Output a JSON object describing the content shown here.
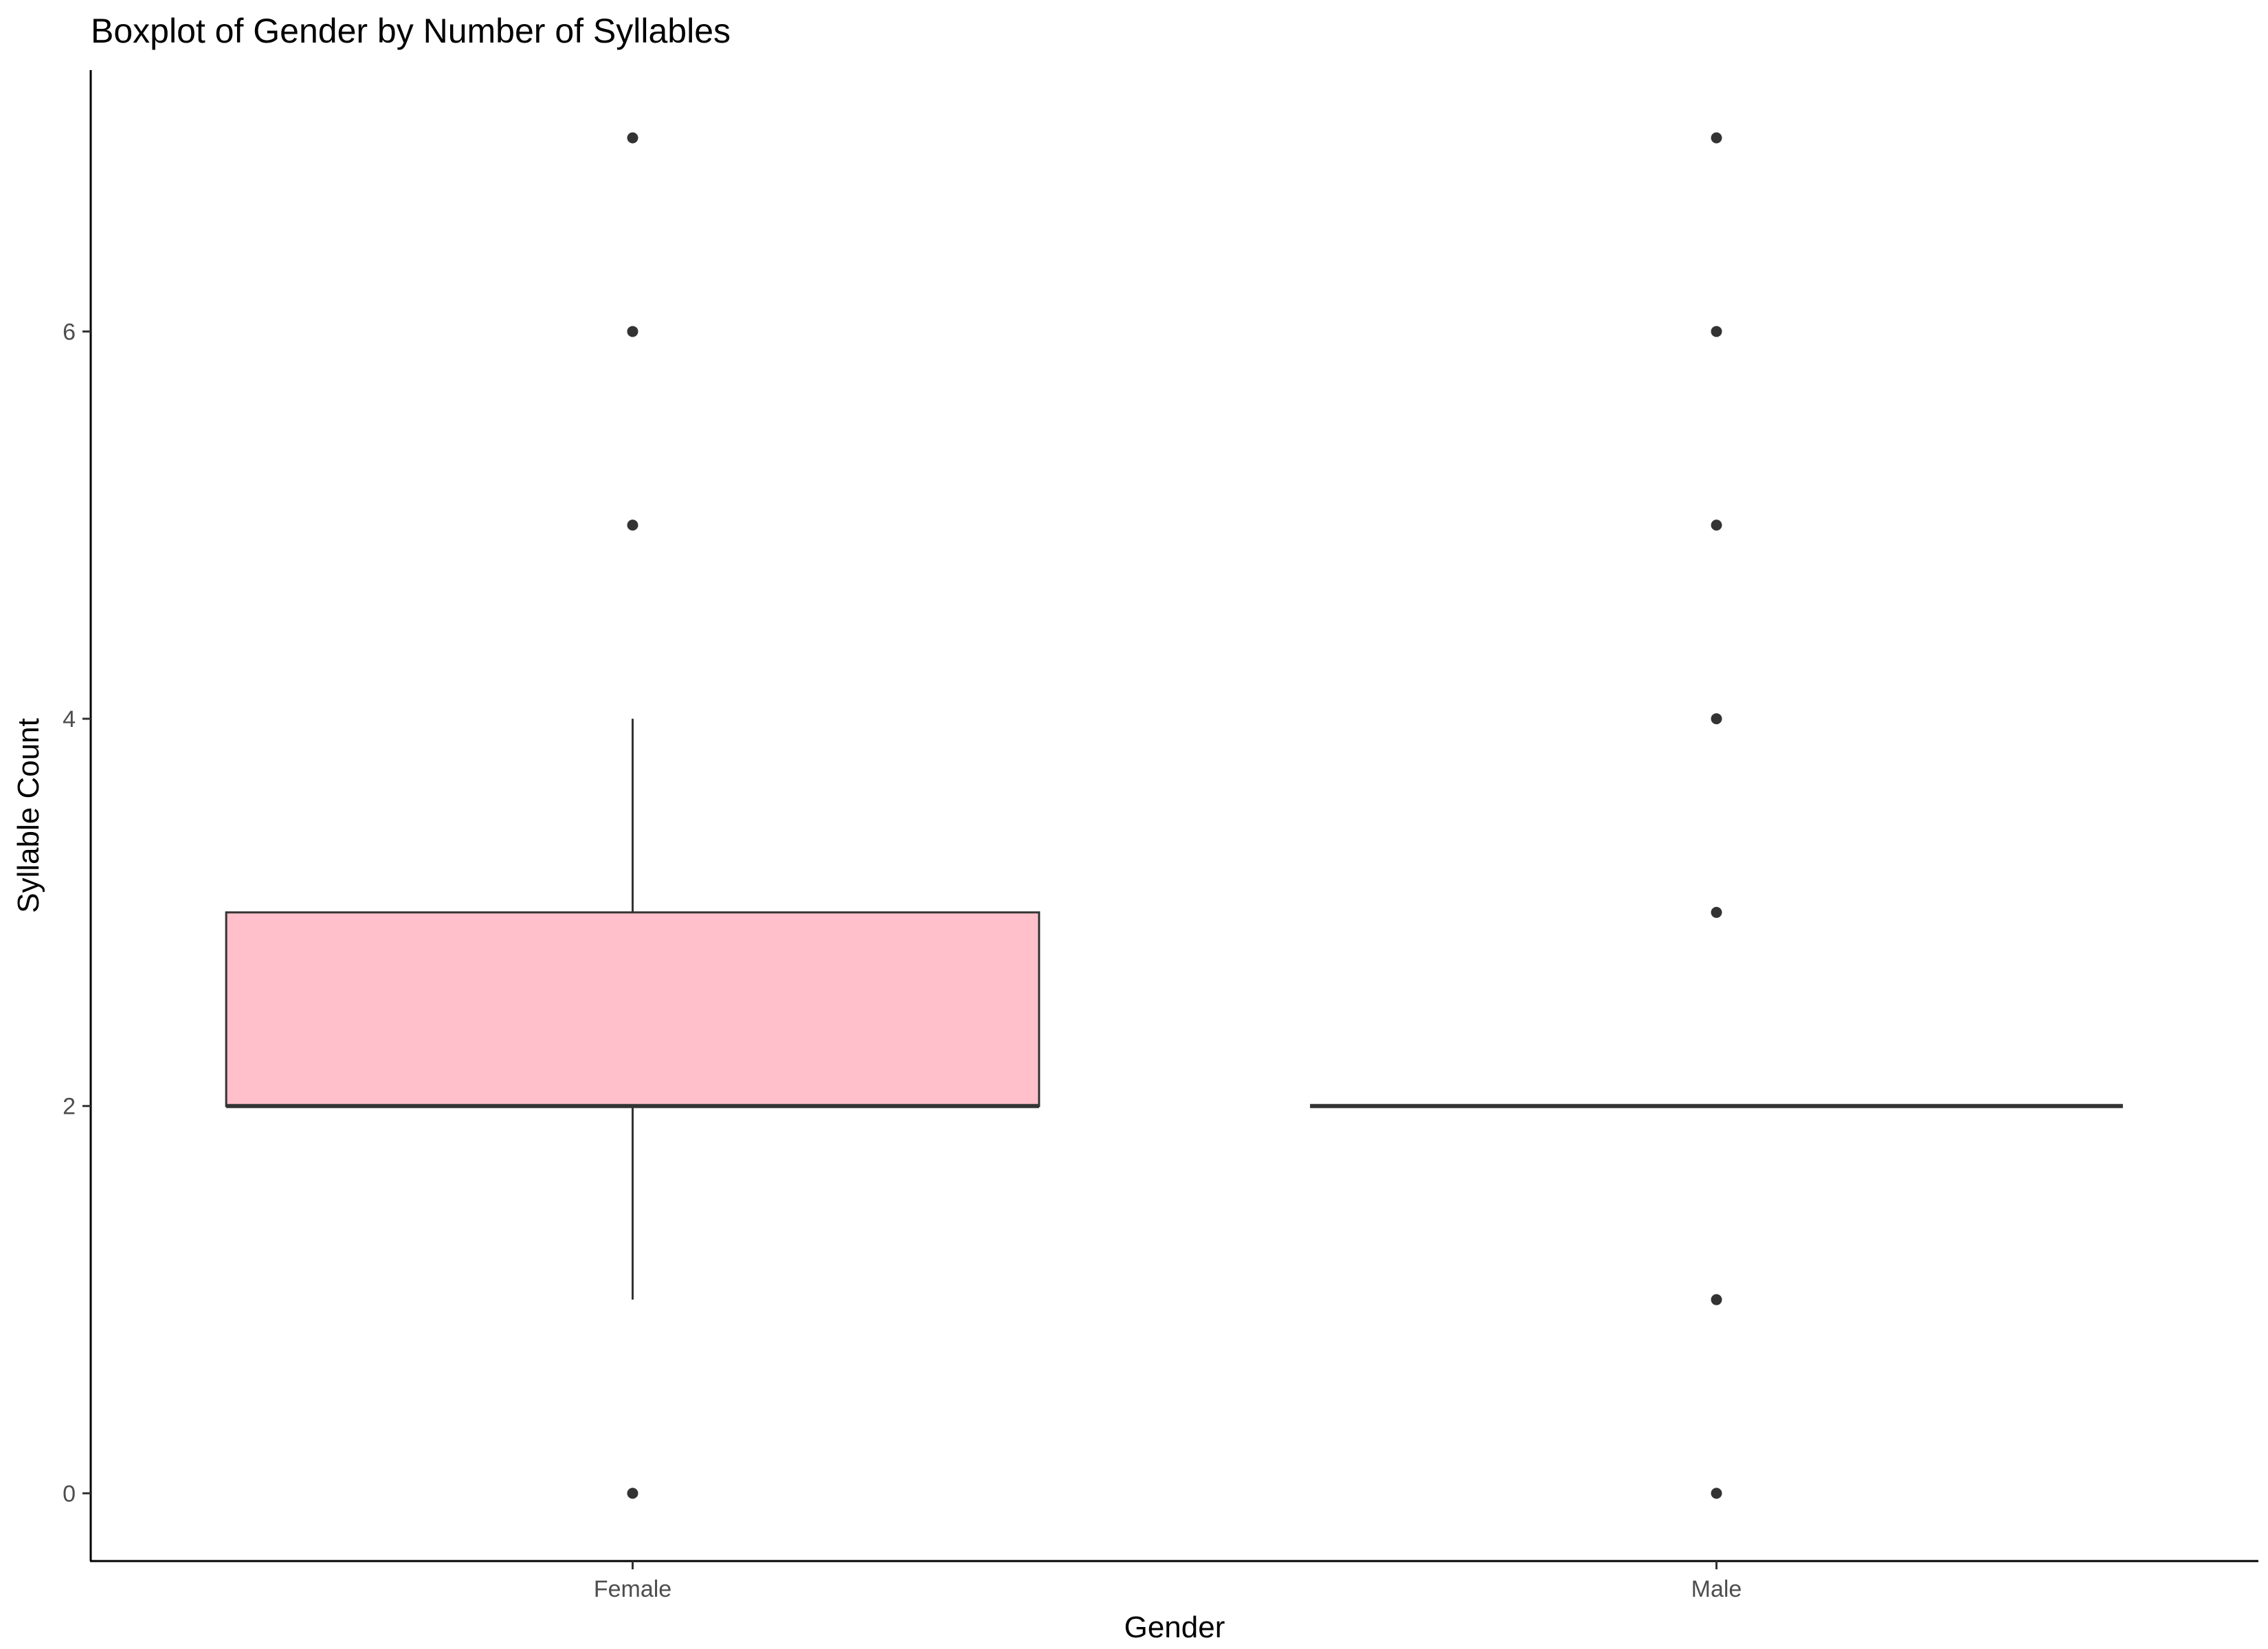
{
  "chart_data": {
    "type": "boxplot",
    "title": "Boxplot of Gender by Number of Syllables",
    "xlabel": "Gender",
    "ylabel": "Syllable Count",
    "categories": [
      "Female",
      "Male"
    ],
    "ylim": [
      -0.35,
      7.35
    ],
    "yticks": [
      0,
      2,
      4,
      6
    ],
    "ytick_labels": [
      "0",
      "2",
      "4",
      "6"
    ],
    "grid": false,
    "series": [
      {
        "category": "Female",
        "fill": "#FFC0CB",
        "q1": 2,
        "median": 2,
        "q3": 3,
        "whisker_low": 1,
        "whisker_high": 4,
        "outliers": [
          0,
          5,
          6,
          7
        ]
      },
      {
        "category": "Male",
        "fill": "#FFC0CB",
        "q1": 2,
        "median": 2,
        "q3": 2,
        "whisker_low": 2,
        "whisker_high": 2,
        "outliers": [
          0,
          1,
          3,
          4,
          5,
          6,
          7
        ]
      }
    ],
    "colors": {
      "box_stroke": "#333333",
      "point": "#333333",
      "axis": "#000000",
      "tick_text": "#4d4d4d"
    }
  }
}
